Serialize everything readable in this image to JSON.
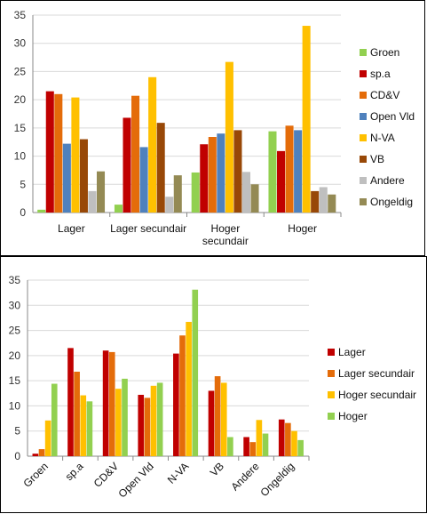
{
  "chart_data": [
    {
      "type": "bar",
      "categories": [
        "Lager",
        "Lager secundair",
        "Hoger secundair",
        "Hoger"
      ],
      "category_display": [
        [
          "Lager"
        ],
        [
          "Lager secundair"
        ],
        [
          "Hoger",
          "secundair"
        ],
        [
          "Hoger"
        ]
      ],
      "ylim": [
        0,
        35
      ],
      "yticks": [
        0,
        5,
        10,
        15,
        20,
        25,
        30,
        35
      ],
      "grid": true,
      "legend_position": "right",
      "series": [
        {
          "name": "Groen",
          "color": "#92d050",
          "values": [
            0.5,
            1.4,
            7.1,
            14.4
          ]
        },
        {
          "name": "sp.a",
          "color": "#c00000",
          "values": [
            21.5,
            16.8,
            12.1,
            10.9
          ]
        },
        {
          "name": "CD&V",
          "color": "#e46c0a",
          "values": [
            21.0,
            20.7,
            13.4,
            15.4
          ]
        },
        {
          "name": "Open Vld",
          "color": "#4f81bd",
          "values": [
            12.2,
            11.6,
            14.0,
            14.6
          ]
        },
        {
          "name": "N-VA",
          "color": "#ffc000",
          "values": [
            20.4,
            24.0,
            26.7,
            33.1
          ]
        },
        {
          "name": "VB",
          "color": "#984807",
          "values": [
            13.0,
            15.9,
            14.6,
            3.8
          ]
        },
        {
          "name": "Andere",
          "color": "#bfbfbf",
          "values": [
            3.8,
            2.8,
            7.2,
            4.5
          ]
        },
        {
          "name": "Ongeldig",
          "color": "#948a54",
          "values": [
            7.3,
            6.6,
            5.0,
            3.2
          ]
        }
      ]
    },
    {
      "type": "bar",
      "categories": [
        "Groen",
        "sp.a",
        "CD&V",
        "Open Vld",
        "N-VA",
        "VB",
        "Andere",
        "Ongeldig"
      ],
      "ylim": [
        0,
        35
      ],
      "yticks": [
        0,
        5,
        10,
        15,
        20,
        25,
        30,
        35
      ],
      "grid": true,
      "legend_position": "right",
      "series": [
        {
          "name": "Lager",
          "color": "#c00000",
          "values": [
            0.5,
            21.5,
            21.0,
            12.2,
            20.4,
            13.0,
            3.8,
            7.3
          ]
        },
        {
          "name": "Lager secundair",
          "color": "#e46c0a",
          "values": [
            1.4,
            16.8,
            20.7,
            11.6,
            24.0,
            15.9,
            2.8,
            6.6
          ]
        },
        {
          "name": "Hoger secundair",
          "color": "#ffc000",
          "values": [
            7.1,
            12.1,
            13.4,
            14.0,
            26.7,
            14.6,
            7.2,
            5.0
          ]
        },
        {
          "name": "Hoger",
          "color": "#92d050",
          "values": [
            14.4,
            10.9,
            15.4,
            14.6,
            33.1,
            3.8,
            4.5,
            3.2
          ]
        }
      ]
    }
  ]
}
